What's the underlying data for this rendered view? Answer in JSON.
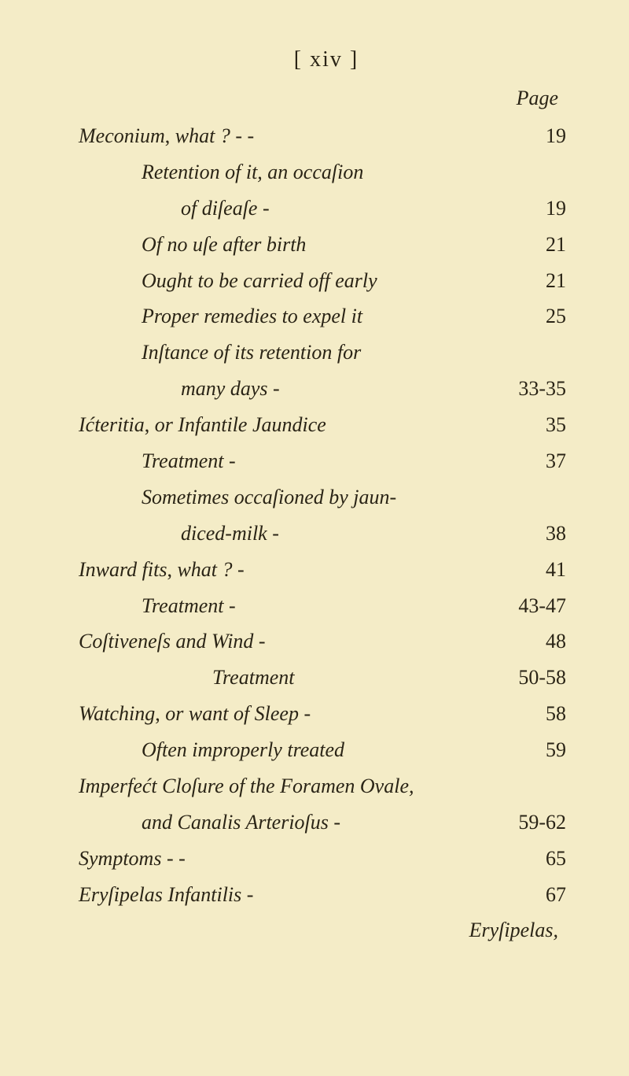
{
  "header": "[  xiv  ]",
  "page_label": "Page",
  "entries": [
    {
      "text_parts": [
        {
          "t": "Meconium",
          "i": true
        },
        {
          "t": ", ",
          "i": false
        },
        {
          "t": "what ?",
          "i": true
        },
        {
          "t": "       -       -",
          "i": false
        }
      ],
      "page": "19",
      "indent": ""
    },
    {
      "text_parts": [
        {
          "t": "Retention of it, an occaſion",
          "i": true
        }
      ],
      "page": "",
      "indent": "indent1"
    },
    {
      "text_parts": [
        {
          "t": "of diſeaſe",
          "i": true
        },
        {
          "t": "           -",
          "i": false
        }
      ],
      "page": "19",
      "indent": "indent2"
    },
    {
      "text_parts": [
        {
          "t": "Of no uſe after birth",
          "i": true
        }
      ],
      "page": "21",
      "indent": "indent1"
    },
    {
      "text_parts": [
        {
          "t": "Ought to be carried off early",
          "i": true
        }
      ],
      "page": "21",
      "indent": "indent1"
    },
    {
      "text_parts": [
        {
          "t": "Proper remedies to expel it",
          "i": true
        }
      ],
      "page": "25",
      "indent": "indent1"
    },
    {
      "text_parts": [
        {
          "t": "Inſtance of its retention for",
          "i": true
        }
      ],
      "page": "",
      "indent": "indent1"
    },
    {
      "text_parts": [
        {
          "t": "many days",
          "i": true
        },
        {
          "t": "        -",
          "i": false
        }
      ],
      "page": "33-35",
      "indent": "indent2"
    },
    {
      "text_parts": [
        {
          "t": "Ićteritia",
          "i": true
        },
        {
          "t": ", ",
          "i": false
        },
        {
          "t": "or Infantile Jaundice",
          "i": true
        }
      ],
      "page": "35",
      "indent": ""
    },
    {
      "text_parts": [
        {
          "t": "Treatment",
          "i": true
        },
        {
          "t": "           -",
          "i": false
        }
      ],
      "page": "37",
      "indent": "indent1"
    },
    {
      "text_parts": [
        {
          "t": "Sometimes occaſioned by jaun-",
          "i": true
        }
      ],
      "page": "",
      "indent": "indent1"
    },
    {
      "text_parts": [
        {
          "t": "diced-milk",
          "i": true
        },
        {
          "t": "          -",
          "i": false
        }
      ],
      "page": "38",
      "indent": "indent2"
    },
    {
      "text_parts": [
        {
          "t": "Inward fits",
          "i": true
        },
        {
          "t": ", ",
          "i": false
        },
        {
          "t": "what ?",
          "i": true
        },
        {
          "t": "         -",
          "i": false
        }
      ],
      "page": "41",
      "indent": ""
    },
    {
      "text_parts": [
        {
          "t": "Treatment",
          "i": true
        },
        {
          "t": "       -",
          "i": false
        }
      ],
      "page": "43-47",
      "indent": "indent1"
    },
    {
      "text_parts": [
        {
          "t": "Coſtiveneſs and Wind",
          "i": true
        },
        {
          "t": "        -",
          "i": false
        }
      ],
      "page": "48",
      "indent": ""
    },
    {
      "text_parts": [
        {
          "t": "Treatment",
          "i": true
        }
      ],
      "page": "50-58",
      "indent": "indent3"
    },
    {
      "text_parts": [
        {
          "t": "Watching",
          "i": true
        },
        {
          "t": ", ",
          "i": false
        },
        {
          "t": "or want of Sleep",
          "i": true
        },
        {
          "t": "       -",
          "i": false
        }
      ],
      "page": "58",
      "indent": ""
    },
    {
      "text_parts": [
        {
          "t": "Often improperly treated",
          "i": true
        }
      ],
      "page": "59",
      "indent": "indent1"
    },
    {
      "text_parts": [
        {
          "t": "Imperfećt Cloſure of the Foramen Ovale,",
          "i": true
        }
      ],
      "page": "",
      "indent": ""
    },
    {
      "text_parts": [
        {
          "t": "and Canalis Arterioſus",
          "i": true
        },
        {
          "t": "      -",
          "i": false
        }
      ],
      "page": "59-62",
      "indent": "indent1",
      "pageroman": false
    },
    {
      "text_parts": [
        {
          "t": "Symptoms",
          "i": true
        },
        {
          "t": "         -          -",
          "i": false
        }
      ],
      "page": "65",
      "indent": ""
    },
    {
      "text_parts": [
        {
          "t": "Eryſipelas Infantilis",
          "i": true
        },
        {
          "t": "         -",
          "i": false
        }
      ],
      "page": "67",
      "indent": ""
    }
  ],
  "catchword": "Eryſipelas,"
}
